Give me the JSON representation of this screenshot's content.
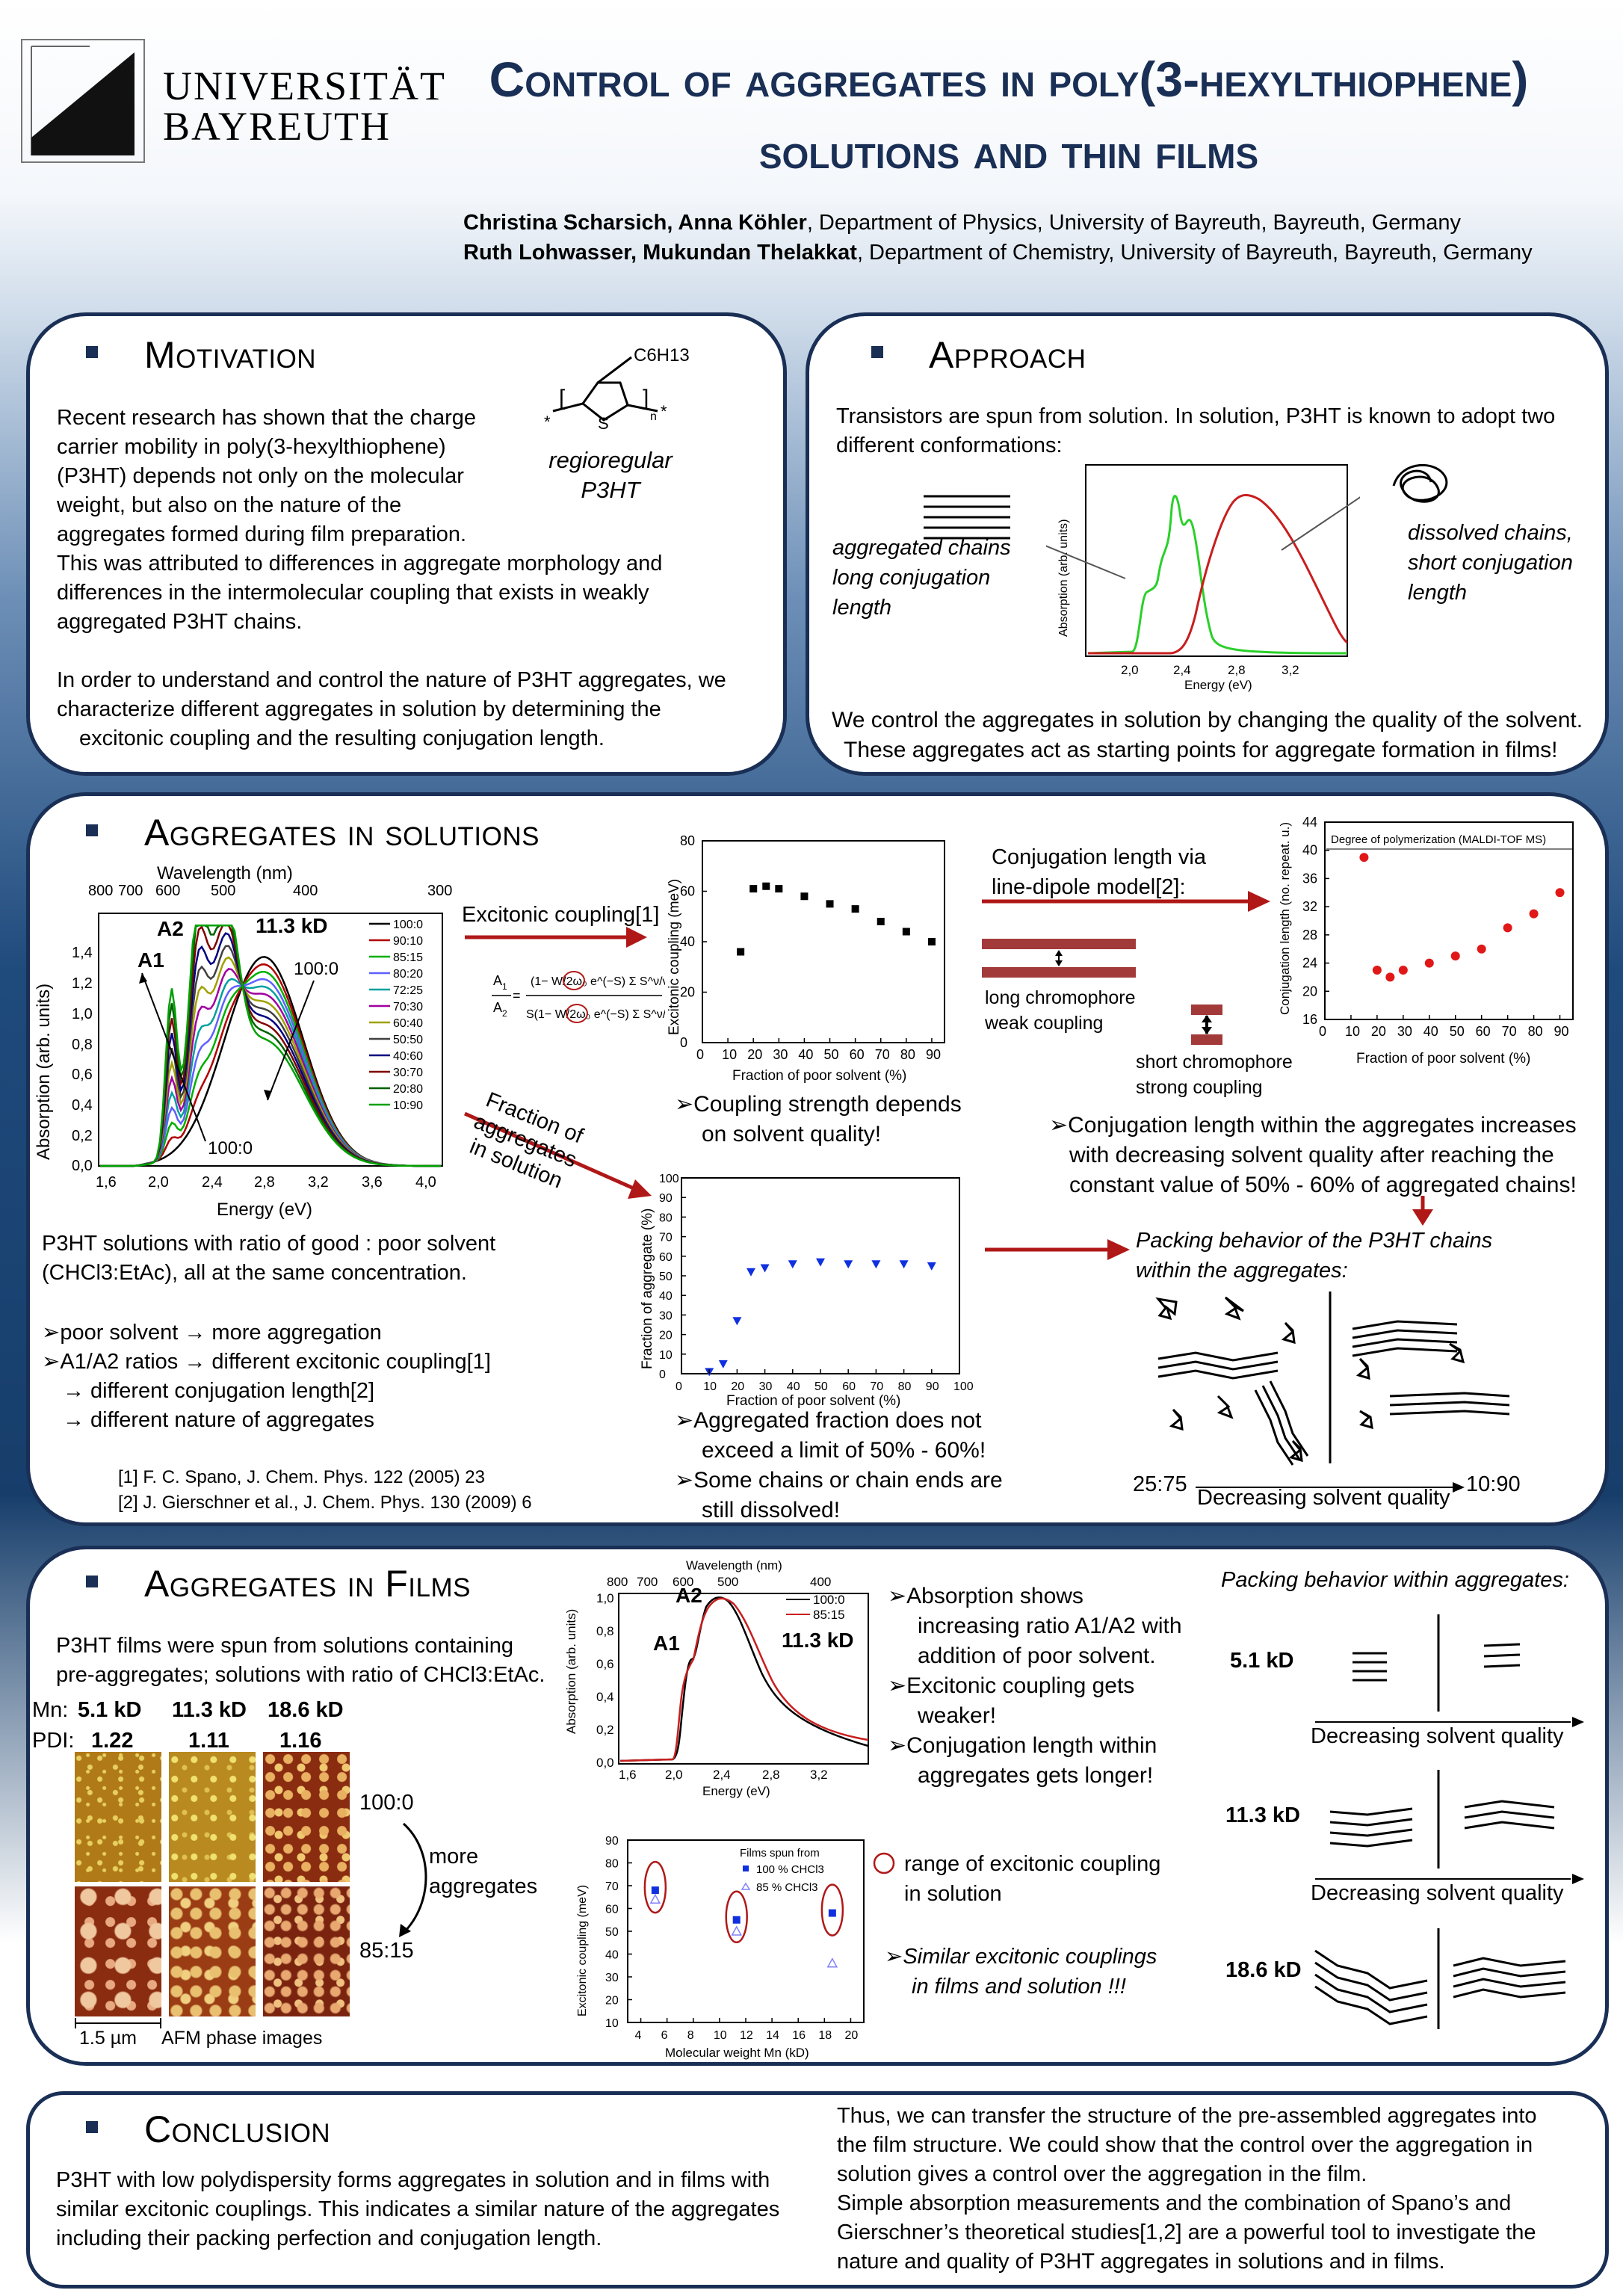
{
  "header": {
    "university": [
      "UNIVERSITÄT",
      "BAYREUTH"
    ],
    "title_line1": "Control of aggregates in poly(3-hexylthiophene)",
    "title_line2": "solutions and thin films",
    "authors1_names": "Christina Scharsich, Anna Köhler",
    "authors1_affil": ", Department of Physics, University of Bayreuth, Bayreuth, Germany",
    "authors2_names": "Ruth Lohwasser, Mukundan Thelakkat",
    "authors2_affil": ", Department of Chemistry, University of Bayreuth, Bayreuth, Germany"
  },
  "motivation": {
    "title": "Motivation",
    "molecule_sub": "C6H13",
    "molecule_label": [
      "regioregular",
      "P3HT"
    ],
    "lines": [
      "Recent research has shown that the charge",
      "carrier mobility in poly(3-hexylthiophene)",
      "(P3HT) depends not only on the molecular",
      "weight, but also on the nature of the",
      "aggregates formed during film preparation.",
      "This was attributed to differences in aggregate morphology and",
      "differences in the intermolecular coupling that exists in weakly",
      "aggregated P3HT chains.",
      "",
      "In order to understand and control the nature of P3HT aggregates, we",
      "characterize different aggregates in solution by determining the",
      "excitonic coupling and the resulting conjugation length."
    ]
  },
  "approach": {
    "title": "Approach",
    "intro": [
      "Transistors are spun from solution. In solution, P3HT is known to adopt two",
      "different conformations:"
    ],
    "left_label": [
      "aggregated chains",
      "long conjugation",
      "length"
    ],
    "right_label": [
      "dissolved chains,",
      "short conjugation",
      "length"
    ],
    "chart_ylabel": "Absorption (arb. units)",
    "chart_xlabel": "Energy (eV)",
    "chart_xticks": [
      "2,0",
      "2,4",
      "2,8",
      "3,2"
    ],
    "conclusion": [
      "We control the aggregates in solution by changing the quality of the solvent.",
      "These aggregates act as starting points for aggregate formation in films!"
    ]
  },
  "solutions": {
    "title": "Aggregates in solutions",
    "abs_chart": {
      "top_label": "Wavelength (nm)",
      "top_ticks": [
        "800",
        "700",
        "600",
        "500",
        "400",
        "300"
      ],
      "xlabel": "Energy (eV)",
      "xticks": [
        "1,6",
        "2,0",
        "2,4",
        "2,8",
        "3,2",
        "3,6",
        "4,0"
      ],
      "ylabel": "Absorption (arb. units)",
      "yticks": [
        "0,0",
        "0,2",
        "0,4",
        "0,6",
        "0,8",
        "1,0",
        "1,2",
        "1,4"
      ],
      "mw": "11.3 kD",
      "a2": "A2",
      "a1": "A1",
      "ann_100_0_top": "100:0",
      "ann_100_0_bot": "100:0",
      "legend": [
        "100:0",
        "90:10",
        "85:15",
        "80:20",
        "72:25",
        "70:30",
        "60:40",
        "50:50",
        "40:60",
        "30:70",
        "20:80",
        "10:90"
      ],
      "legend_colors": [
        "#000000",
        "#b00000",
        "#00b000",
        "#6060ff",
        "#00a0a0",
        "#a000a0",
        "#a0a000",
        "#404040",
        "#000080",
        "#800000",
        "#006000",
        "#00a000"
      ]
    },
    "solutions_desc": [
      "P3HT solutions with ratio of good : poor solvent",
      "(CHCl3:EtAc), all at the same concentration."
    ],
    "bullets": [
      "poor solvent → more aggregation",
      "A1/A2 ratios → different excitonic coupling[1]",
      "→ different conjugation length[2]",
      "→ different nature of aggregates"
    ],
    "refs": [
      "[1] F. C. Spano, J. Chem. Phys. 122 (2005) 23",
      "[2] J. Gierschner et al., J. Chem. Phys. 130 (2009) 6"
    ],
    "excitonic_label": "Excitonic coupling[1]",
    "fraction_label": [
      "Fraction of",
      "aggregates",
      "in solution"
    ],
    "coupling_chart": {
      "ylabel": "Excitonic coupling (meV)",
      "xlabel": "Fraction of poor solvent (%)",
      "xticks": [
        "0",
        "10",
        "20",
        "30",
        "40",
        "50",
        "60",
        "70",
        "80",
        "90"
      ],
      "yticks": [
        "0",
        "20",
        "40",
        "60",
        "80"
      ]
    },
    "coupling_text": [
      "Coupling strength depends",
      "on solvent quality!"
    ],
    "fraction_chart": {
      "ylabel": "Fraction of aggregate (%)",
      "xlabel": "Fraction of poor solvent (%)",
      "xticks": [
        "0",
        "10",
        "20",
        "30",
        "40",
        "50",
        "60",
        "70",
        "80",
        "90",
        "100"
      ],
      "yticks": [
        "0",
        "10",
        "20",
        "30",
        "40",
        "50",
        "60",
        "70",
        "80",
        "90",
        "100"
      ]
    },
    "fraction_text": [
      "Aggregated fraction does not",
      "exceed a limit of 50% - 60%!",
      "Some chains or chain ends are",
      "still dissolved!"
    ],
    "conj_label": [
      "Conjugation length via",
      "line-dipole model[2]:"
    ],
    "long_chrom": [
      "long chromophore",
      "weak coupling"
    ],
    "short_chrom": [
      "short chromophore",
      "strong coupling"
    ],
    "conj_chart": {
      "ylabel": "Conjugation length (no. repeat. u.)",
      "xlabel": "Fraction of poor solvent (%)",
      "inset": "Degree of polymerization (MALDI-TOF MS)",
      "xticks": [
        "0",
        "10",
        "20",
        "30",
        "40",
        "50",
        "60",
        "70",
        "80",
        "90"
      ],
      "yticks": [
        "16",
        "20",
        "24",
        "28",
        "32",
        "36",
        "40",
        "44"
      ]
    },
    "conj_text": [
      "Conjugation length within the aggregates increases",
      "with decreasing solvent quality after reaching the",
      "constant value of 50% - 60% of aggregated chains!"
    ],
    "packing_title": [
      "Packing behavior of the P3HT chains",
      "within the aggregates:"
    ],
    "ratio_left": "25:75",
    "ratio_right": "10:90",
    "decreasing": "Decreasing solvent quality"
  },
  "films": {
    "title": "Aggregates in Films",
    "intro": [
      "P3HT films were spun from solutions containing",
      "pre-aggregates; solutions with ratio of CHCl3:EtAc."
    ],
    "mn_label": "Mn:",
    "pdi_label": "PDI:",
    "mn_values": [
      "5.1 kD",
      "11.3 kD",
      "18.6 kD"
    ],
    "pdi_values": [
      "1.22",
      "1.11",
      "1.16"
    ],
    "ratio_top": "100:0",
    "ratio_bottom": "85:15",
    "more": [
      "more",
      "aggregates"
    ],
    "scale": "1.5 µm",
    "afm": "AFM phase images",
    "abs_chart": {
      "top_label": "Wavelength (nm)",
      "top_ticks": [
        "800",
        "700",
        "600",
        "500",
        "400"
      ],
      "xlabel": "Energy (eV)",
      "xticks": [
        "1,6",
        "2,0",
        "2,4",
        "2,8",
        "3,2"
      ],
      "ylabel": "Absorption (arb. units)",
      "yticks": [
        "0,0",
        "0,2",
        "0,4",
        "0,6",
        "0,8",
        "1,0"
      ],
      "legend": [
        "100:0",
        "85:15"
      ],
      "mw": "11.3 kD",
      "a2": "A2",
      "a1": "A1"
    },
    "abs_text": [
      "Absorption shows",
      "increasing ratio A1/A2 with",
      "addition of poor solvent.",
      "Excitonic coupling gets",
      "weaker!",
      "Conjugation length within",
      "aggregates gets longer!"
    ],
    "mw_chart": {
      "ylabel": "Excitonic coupling (meV)",
      "xlabel": "Molecular weight Mn (kD)",
      "xticks": [
        "4",
        "6",
        "8",
        "10",
        "12",
        "14",
        "16",
        "18",
        "20"
      ],
      "yticks": [
        "10",
        "20",
        "30",
        "40",
        "50",
        "60",
        "70",
        "80",
        "90"
      ],
      "legend_title": "Films spun from",
      "legend": [
        "100 % CHCl3",
        "85 % CHCl3"
      ]
    },
    "range_text": [
      "range of excitonic coupling",
      "in solution"
    ],
    "similar_text": [
      "Similar excitonic couplings",
      "in films and solution !!!"
    ],
    "packing_title": "Packing behavior within aggregates:",
    "mw_labels": [
      "5.1 kD",
      "11.3 kD",
      "18.6 kD"
    ],
    "decreasing": "Decreasing solvent quality"
  },
  "conclusion": {
    "title": "Conclusion",
    "left": [
      "P3HT with low polydispersity forms aggregates in solution and in films with",
      "similar excitonic couplings. This indicates a similar nature of the aggregates",
      "including their packing perfection and conjugation length."
    ],
    "right": [
      "Thus, we can transfer the structure of the pre-assembled aggregates into",
      "the film structure. We could show that the control over the aggregation in",
      "solution gives a control over the aggregation in the film.",
      "Simple absorption measurements and the combination of Spano’s and",
      "Gierschner’s theoretical studies[1,2] are a powerful tool to investigate the",
      "nature and quality of P3HT aggregates in solutions and in films."
    ]
  },
  "chart_data": [
    {
      "type": "scatter",
      "xlabel": "Fraction of poor solvent (%)",
      "ylabel": "Excitonic coupling (meV)",
      "ylim": [
        0,
        80
      ],
      "xlim": [
        0,
        90
      ],
      "x": [
        15,
        20,
        25,
        30,
        40,
        50,
        60,
        70,
        80,
        90
      ],
      "y": [
        36,
        61,
        62,
        61,
        58,
        55,
        53,
        48,
        44,
        40
      ]
    },
    {
      "type": "scatter",
      "xlabel": "Fraction of poor solvent (%)",
      "ylabel": "Fraction of aggregate (%)",
      "ylim": [
        0,
        100
      ],
      "xlim": [
        0,
        100
      ],
      "x": [
        10,
        15,
        20,
        25,
        30,
        40,
        50,
        60,
        70,
        80,
        90
      ],
      "y": [
        1,
        5,
        27,
        52,
        54,
        56,
        57,
        56,
        56,
        56,
        55
      ]
    },
    {
      "type": "scatter",
      "xlabel": "Fraction of poor solvent (%)",
      "ylabel": "Conjugation length (no. repeat. u.)",
      "ylim": [
        16,
        44
      ],
      "xlim": [
        0,
        90
      ],
      "x": [
        15,
        20,
        25,
        30,
        40,
        50,
        60,
        70,
        80,
        90
      ],
      "y": [
        39,
        23,
        22,
        23,
        24,
        25,
        26,
        29,
        31,
        34
      ]
    },
    {
      "type": "scatter",
      "xlabel": "Molecular weight Mn (kD)",
      "ylabel": "Excitonic coupling (meV)",
      "ylim": [
        10,
        90
      ],
      "xlim": [
        4,
        20
      ],
      "series": [
        {
          "name": "100 % CHCl3",
          "x": [
            5.1,
            11.3,
            18.6
          ],
          "y": [
            68,
            55,
            58
          ]
        },
        {
          "name": "85 % CHCl3",
          "x": [
            5.1,
            11.3,
            18.6
          ],
          "y": [
            64,
            50,
            36
          ]
        }
      ]
    }
  ]
}
